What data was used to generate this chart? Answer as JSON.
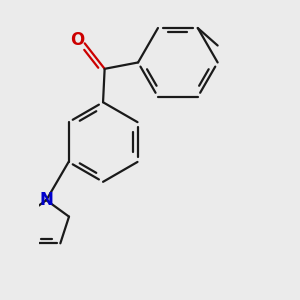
{
  "bg_color": "#ebebeb",
  "bond_color": "#1a1a1a",
  "o_color": "#cc0000",
  "n_color": "#0000cc",
  "line_width": 1.6,
  "dbo": 0.055,
  "figsize": [
    3.0,
    3.0
  ],
  "dpi": 100
}
